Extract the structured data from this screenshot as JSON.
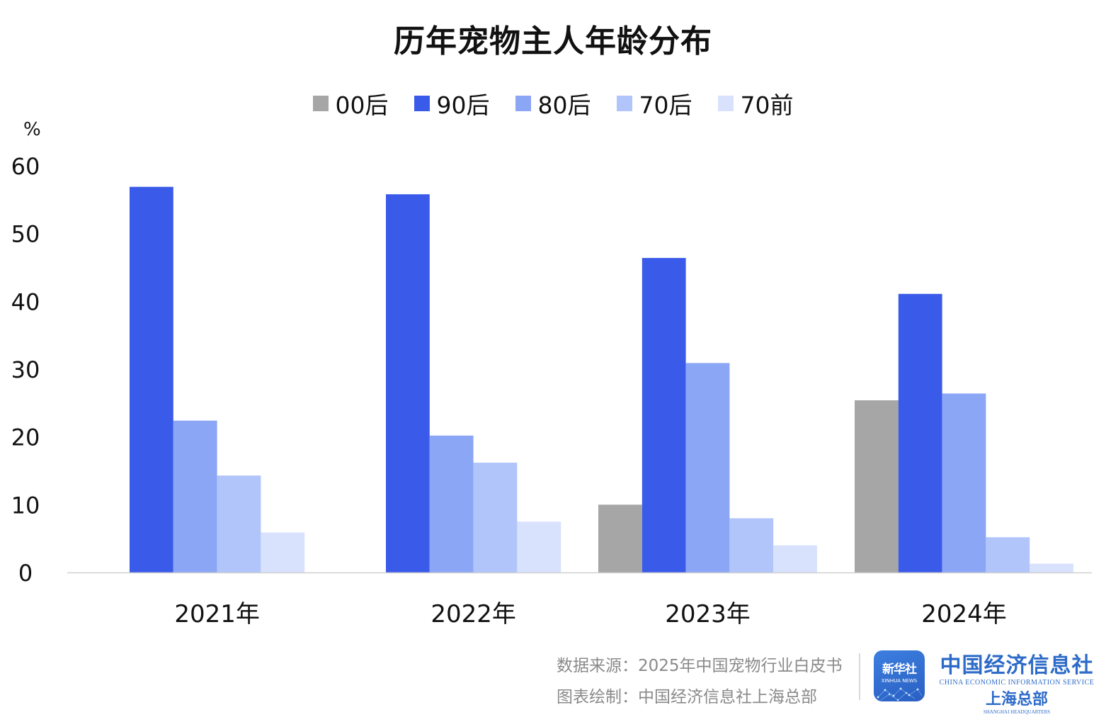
{
  "chart_data": {
    "type": "bar",
    "title": "历年宠物主人年龄分布",
    "ylabel": "%",
    "xlabel": "",
    "ylim": [
      0,
      60
    ],
    "yticks": [
      0,
      10,
      20,
      30,
      40,
      50,
      60
    ],
    "categories": [
      "2021年",
      "2022年",
      "2023年",
      "2024年"
    ],
    "series": [
      {
        "name": "00后",
        "color": "#a6a6a6",
        "values": [
          0,
          0,
          10.0,
          25.4
        ]
      },
      {
        "name": "90后",
        "color": "#3a5be9",
        "values": [
          56.9,
          55.8,
          46.4,
          41.1
        ]
      },
      {
        "name": "80后",
        "color": "#8ca6f6",
        "values": [
          22.4,
          20.2,
          30.9,
          26.4
        ]
      },
      {
        "name": "70后",
        "color": "#b2c5fb",
        "values": [
          14.3,
          16.2,
          8.0,
          5.2
        ]
      },
      {
        "name": "70前",
        "color": "#d8e2fc",
        "values": [
          5.9,
          7.5,
          4.0,
          1.3
        ]
      }
    ],
    "legend_position": "top-center",
    "grid": false
  },
  "footer": {
    "source": "数据来源：2025年中国宠物行业白皮书",
    "credit": "图表绘制：中国经济信息社上海总部"
  },
  "logos": {
    "xinhua_cn": "新华社",
    "xinhua_en": "XINHUA NEWS",
    "ceis_cn": "中国经济信息社",
    "ceis_en": "CHINA ECONOMIC INFORMATION SERVICE",
    "shanghai_cn": "上海总部",
    "shanghai_en": "SHANGHAI HEADQUARTERS"
  }
}
